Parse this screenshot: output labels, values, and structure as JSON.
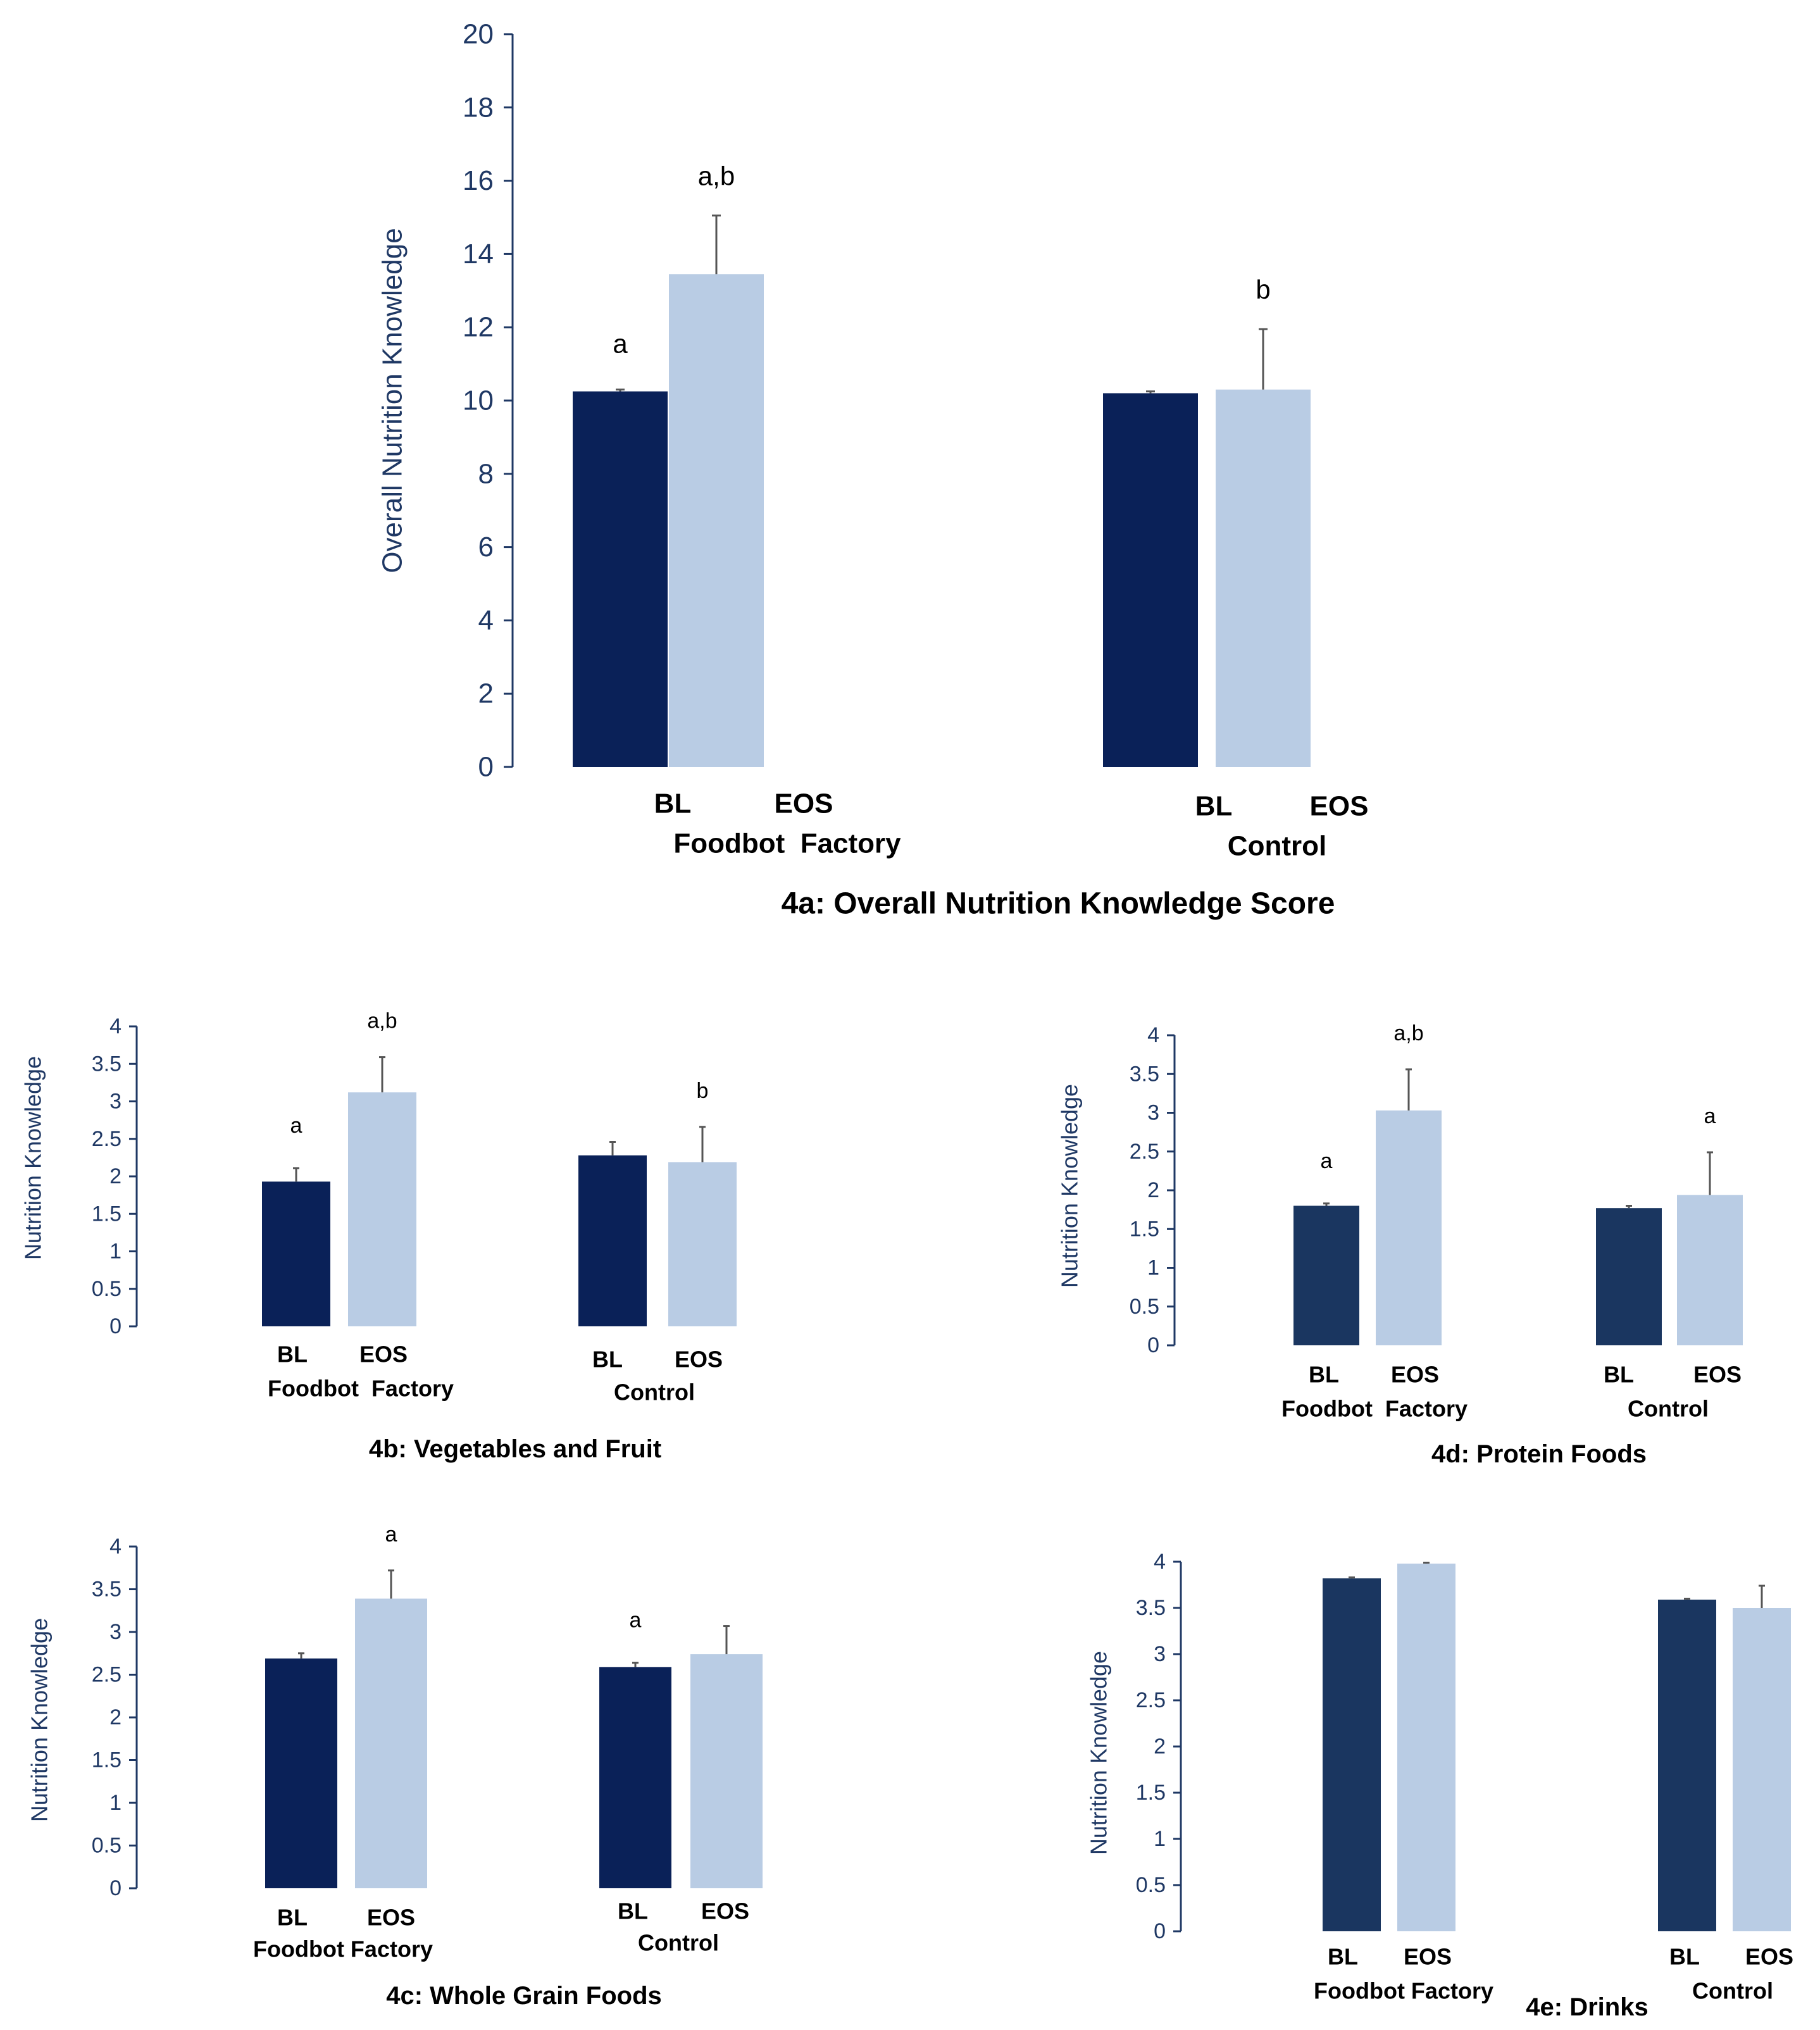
{
  "colors": {
    "axis": "#1f3864",
    "error_bar": "#555555",
    "bl_fill": "#0a2158",
    "bl_fill_alt": "#1a3660",
    "eos_fill": "#b9cce4",
    "tick_text": "#1f3864"
  },
  "chart_data": [
    {
      "id": "4a",
      "type": "bar",
      "title": "4a: Overall Nutrition Knowledge Score",
      "ylabel": "Overall Nutrition Knowledge",
      "ylim": [
        0,
        20
      ],
      "yticks": [
        0,
        2,
        4,
        6,
        8,
        10,
        12,
        14,
        16,
        18,
        20
      ],
      "ytick_labels": [
        "0",
        "2",
        "4",
        "6",
        "8",
        "10",
        "12",
        "14",
        "16",
        "18",
        "20"
      ],
      "groups": [
        "Foodbot  Factory",
        "Control"
      ],
      "categories": [
        "BL",
        "EOS"
      ],
      "series": [
        {
          "name": "BL",
          "values": [
            10.25,
            10.2
          ],
          "errors": [
            0.05,
            0.05
          ]
        },
        {
          "name": "EOS",
          "values": [
            13.45,
            10.3
          ],
          "errors": [
            1.6,
            1.65
          ]
        }
      ],
      "significance": [
        [
          "a",
          "a,b"
        ],
        [
          "",
          "b"
        ]
      ],
      "grid": false
    },
    {
      "id": "4b",
      "type": "bar",
      "title": "4b: Vegetables and Fruit",
      "ylabel": "Nutrition Knowledge",
      "ylim": [
        0,
        4
      ],
      "yticks": [
        0,
        0.5,
        1,
        1.5,
        2,
        2.5,
        3,
        3.5,
        4
      ],
      "ytick_labels": [
        "0",
        "0.5",
        "1",
        "1.5",
        "2",
        "2.5",
        "3",
        "3.5",
        "4"
      ],
      "groups": [
        "Foodbot  Factory",
        "Control"
      ],
      "categories": [
        "BL",
        "EOS"
      ],
      "series": [
        {
          "name": "BL",
          "values": [
            1.93,
            2.28
          ],
          "errors": [
            0.18,
            0.18
          ]
        },
        {
          "name": "EOS",
          "values": [
            3.12,
            2.19
          ],
          "errors": [
            0.47,
            0.47
          ]
        }
      ],
      "significance": [
        [
          "a",
          "a,b"
        ],
        [
          "",
          "b"
        ]
      ],
      "grid": false
    },
    {
      "id": "4d",
      "type": "bar",
      "title": "4d: Protein Foods",
      "ylabel": "Nutrition Knowledge",
      "ylim": [
        0,
        4
      ],
      "yticks": [
        0,
        0.5,
        1,
        1.5,
        2,
        2.5,
        3,
        3.5,
        4
      ],
      "ytick_labels": [
        "0",
        "0.5",
        "1",
        "1.5",
        "2",
        "2.5",
        "3",
        "3.5",
        "4"
      ],
      "groups": [
        "Foodbot  Factory",
        "Control"
      ],
      "categories": [
        "BL",
        "EOS"
      ],
      "series": [
        {
          "name": "BL",
          "values": [
            1.8,
            1.77
          ],
          "errors": [
            0.03,
            0.03
          ]
        },
        {
          "name": "EOS",
          "values": [
            3.03,
            1.94
          ],
          "errors": [
            0.53,
            0.55
          ]
        }
      ],
      "significance": [
        [
          "a",
          "a,b"
        ],
        [
          "",
          "a"
        ]
      ],
      "grid": false
    },
    {
      "id": "4c",
      "type": "bar",
      "title": "4c: Whole Grain Foods",
      "ylabel": "Nutrition Knowledge",
      "ylim": [
        0,
        4
      ],
      "yticks": [
        0,
        0.5,
        1,
        1.5,
        2,
        2.5,
        3,
        3.5,
        4
      ],
      "ytick_labels": [
        "0",
        "0.5",
        "1",
        "1.5",
        "2",
        "2.5",
        "3",
        "3.5",
        "4"
      ],
      "groups": [
        "Foodbot Factory",
        "Control"
      ],
      "categories": [
        "BL",
        "EOS"
      ],
      "series": [
        {
          "name": "BL",
          "values": [
            2.69,
            2.59
          ],
          "errors": [
            0.06,
            0.05
          ]
        },
        {
          "name": "EOS",
          "values": [
            3.39,
            2.74
          ],
          "errors": [
            0.33,
            0.33
          ]
        }
      ],
      "significance": [
        [
          "",
          "a"
        ],
        [
          "a",
          ""
        ]
      ],
      "grid": false
    },
    {
      "id": "4e",
      "type": "bar",
      "title": "4e: Drinks",
      "ylabel": "Nutrition Knowledge",
      "ylim": [
        0,
        4
      ],
      "yticks": [
        0,
        0.5,
        1,
        1.5,
        2,
        2.5,
        3,
        3.5,
        4
      ],
      "ytick_labels": [
        "0",
        "0.5",
        "1",
        "1.5",
        "2",
        "2.5",
        "3",
        "3.5",
        "4"
      ],
      "groups": [
        "Foodbot Factory",
        "Control"
      ],
      "categories": [
        "BL",
        "EOS"
      ],
      "series": [
        {
          "name": "BL",
          "values": [
            3.82,
            3.59
          ],
          "errors": [
            0.01,
            0.01
          ]
        },
        {
          "name": "EOS",
          "values": [
            3.98,
            3.5
          ],
          "errors": [
            0.01,
            0.24
          ]
        }
      ],
      "significance": [
        [
          "",
          ""
        ],
        [
          "",
          ""
        ]
      ],
      "grid": false
    }
  ]
}
